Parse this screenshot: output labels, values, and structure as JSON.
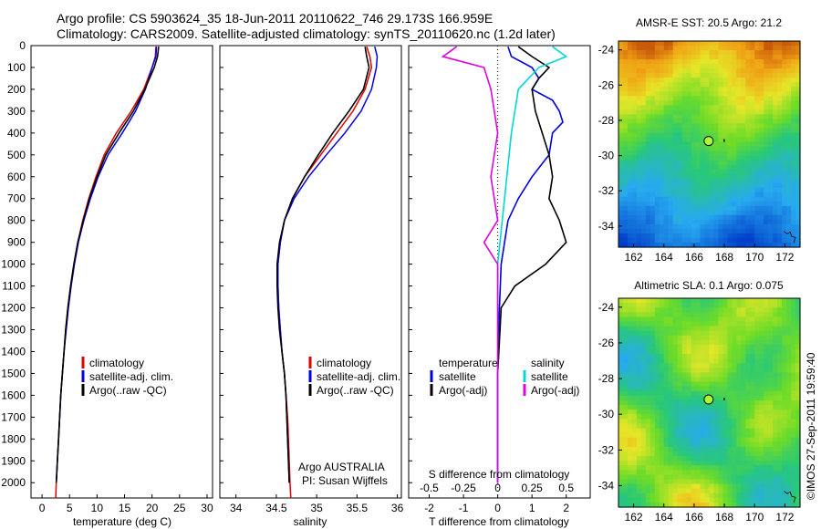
{
  "title": {
    "line1": "Argo profile: CS 5903624_35 18-Jun-2011 20110622_746 29.173S 166.959E",
    "line2": "Climatology: CARS2009. Satellite-adjusted climatology: synTS_20110620.nc (1.2d later)"
  },
  "colors": {
    "climatology": "#e00000",
    "satellite": "#0000e0",
    "argo": "#000000",
    "sat_salinity": "#00d8d8",
    "argo_salinity": "#e000e0"
  },
  "depth_axis": {
    "ticks": [
      "0",
      "100",
      "200",
      "300",
      "400",
      "500",
      "600",
      "700",
      "800",
      "900",
      "1000",
      "1100",
      "1200",
      "1300",
      "1400",
      "1500",
      "1600",
      "1700",
      "1800",
      "1900",
      "2000"
    ],
    "range": [
      0,
      2070
    ]
  },
  "chart_data": [
    {
      "type": "line",
      "panel": "temperature",
      "xlabel": "temperature (deg C)",
      "xticks": [
        "0",
        "5",
        "10",
        "15",
        "20",
        "25",
        "30"
      ],
      "xlim": [
        -2,
        31
      ],
      "legend": [
        "climatology",
        "satellite-adj. clim.",
        "Argo(..raw -QC)"
      ],
      "series": [
        {
          "name": "climatology",
          "points": [
            [
              20.7,
              5
            ],
            [
              20.6,
              50
            ],
            [
              20.0,
              100
            ],
            [
              18.5,
              200
            ],
            [
              16.2,
              300
            ],
            [
              13.5,
              400
            ],
            [
              11.3,
              500
            ],
            [
              9.8,
              600
            ],
            [
              8.5,
              700
            ],
            [
              7.4,
              800
            ],
            [
              6.5,
              900
            ],
            [
              5.8,
              1000
            ],
            [
              5.2,
              1100
            ],
            [
              4.7,
              1200
            ],
            [
              4.3,
              1300
            ],
            [
              4.0,
              1400
            ],
            [
              3.7,
              1500
            ],
            [
              3.4,
              1600
            ],
            [
              3.2,
              1700
            ],
            [
              3.0,
              1800
            ],
            [
              2.8,
              1900
            ],
            [
              2.6,
              2000
            ],
            [
              2.5,
              2070
            ]
          ]
        },
        {
          "name": "satellite-adj. clim.",
          "points": [
            [
              20.8,
              5
            ],
            [
              20.7,
              50
            ],
            [
              20.0,
              100
            ],
            [
              18.8,
              200
            ],
            [
              17.0,
              300
            ],
            [
              14.6,
              400
            ],
            [
              12.0,
              500
            ],
            [
              10.2,
              600
            ],
            [
              8.8,
              700
            ],
            [
              7.6,
              800
            ],
            [
              6.6,
              900
            ],
            [
              5.9,
              1000
            ],
            [
              5.3,
              1100
            ],
            [
              4.8,
              1200
            ],
            [
              4.4,
              1300
            ],
            [
              4.0,
              1400
            ],
            [
              3.7,
              1500
            ],
            [
              3.4,
              1600
            ],
            [
              3.2,
              1700
            ],
            [
              3.0,
              1800
            ],
            [
              2.8,
              1900
            ],
            [
              2.6,
              2000
            ]
          ]
        },
        {
          "name": "Argo(..raw -QC)",
          "points": [
            [
              21.2,
              5
            ],
            [
              21.0,
              50
            ],
            [
              20.4,
              100
            ],
            [
              18.7,
              200
            ],
            [
              16.6,
              300
            ],
            [
              14.0,
              400
            ],
            [
              11.6,
              500
            ],
            [
              10.0,
              600
            ],
            [
              8.6,
              700
            ],
            [
              7.5,
              800
            ],
            [
              6.5,
              900
            ],
            [
              5.8,
              1000
            ],
            [
              5.2,
              1100
            ],
            [
              4.7,
              1200
            ],
            [
              4.3,
              1300
            ],
            [
              4.0,
              1400
            ],
            [
              3.7,
              1500
            ],
            [
              3.4,
              1600
            ],
            [
              3.2,
              1700
            ],
            [
              3.0,
              1800
            ],
            [
              2.8,
              1900
            ],
            [
              2.6,
              2000
            ]
          ]
        }
      ]
    },
    {
      "type": "line",
      "panel": "salinity",
      "xlabel": "salinity",
      "xticks": [
        "34",
        "34.5",
        "35",
        "35.5",
        "36"
      ],
      "xlim": [
        33.8,
        36.05
      ],
      "legend": [
        "climatology",
        "satellite-adj. clim.",
        "Argo(..raw -QC)"
      ],
      "annotation": [
        "Argo AUSTRALIA",
        "PI: Susan Wijffels"
      ],
      "series": [
        {
          "name": "climatology",
          "points": [
            [
              35.62,
              5
            ],
            [
              35.66,
              50
            ],
            [
              35.68,
              100
            ],
            [
              35.6,
              200
            ],
            [
              35.45,
              300
            ],
            [
              35.25,
              400
            ],
            [
              35.05,
              500
            ],
            [
              34.85,
              600
            ],
            [
              34.7,
              700
            ],
            [
              34.6,
              800
            ],
            [
              34.55,
              900
            ],
            [
              34.52,
              1000
            ],
            [
              34.52,
              1100
            ],
            [
              34.53,
              1200
            ],
            [
              34.55,
              1300
            ],
            [
              34.57,
              1400
            ],
            [
              34.6,
              1500
            ],
            [
              34.62,
              1600
            ],
            [
              34.64,
              1700
            ],
            [
              34.65,
              1800
            ],
            [
              34.66,
              1900
            ],
            [
              34.67,
              2000
            ],
            [
              34.68,
              2070
            ]
          ]
        },
        {
          "name": "satellite-adj. clim.",
          "points": [
            [
              35.72,
              5
            ],
            [
              35.75,
              50
            ],
            [
              35.74,
              100
            ],
            [
              35.68,
              200
            ],
            [
              35.55,
              300
            ],
            [
              35.35,
              400
            ],
            [
              35.12,
              500
            ],
            [
              34.9,
              600
            ],
            [
              34.72,
              700
            ],
            [
              34.6,
              800
            ],
            [
              34.55,
              900
            ],
            [
              34.52,
              1000
            ],
            [
              34.52,
              1100
            ],
            [
              34.53,
              1200
            ],
            [
              34.55,
              1300
            ],
            [
              34.57,
              1400
            ],
            [
              34.6,
              1500
            ],
            [
              34.62,
              1600
            ],
            [
              34.63,
              1700
            ],
            [
              34.64,
              1800
            ],
            [
              34.65,
              1900
            ],
            [
              34.66,
              2000
            ]
          ]
        },
        {
          "name": "Argo(..raw -QC)",
          "points": [
            [
              35.6,
              5
            ],
            [
              35.62,
              50
            ],
            [
              35.65,
              100
            ],
            [
              35.58,
              200
            ],
            [
              35.4,
              300
            ],
            [
              35.2,
              400
            ],
            [
              35.02,
              500
            ],
            [
              34.85,
              600
            ],
            [
              34.7,
              700
            ],
            [
              34.6,
              800
            ],
            [
              34.54,
              900
            ],
            [
              34.51,
              1000
            ],
            [
              34.51,
              1100
            ],
            [
              34.52,
              1200
            ],
            [
              34.54,
              1300
            ],
            [
              34.57,
              1400
            ],
            [
              34.6,
              1500
            ],
            [
              34.62,
              1600
            ],
            [
              34.63,
              1700
            ],
            [
              34.64,
              1800
            ],
            [
              34.65,
              1900
            ],
            [
              34.66,
              2000
            ]
          ]
        }
      ]
    },
    {
      "type": "line",
      "panel": "difference",
      "xlabel": "T difference from climatology",
      "xlabel_top": "S difference from climatology",
      "xticks_bottom": [
        "-2",
        "-1",
        "0",
        "1",
        "2"
      ],
      "xticks_top": [
        "-0.5",
        "-0.25",
        "0",
        "0.25",
        "0.5"
      ],
      "xlim": [
        -2.6,
        2.7
      ],
      "legend_temperature": {
        "header": "temperature",
        "entries": [
          "satellite",
          "Argo(-adj)"
        ]
      },
      "legend_salinity": {
        "header": "salinity",
        "entries": [
          "satellite",
          "Argo(-adj)"
        ]
      },
      "series": [
        {
          "name": "temperature satellite",
          "points": [
            [
              0.3,
              5
            ],
            [
              0.4,
              50
            ],
            [
              1.0,
              100
            ],
            [
              1.2,
              150
            ],
            [
              1.0,
              200
            ],
            [
              1.6,
              250
            ],
            [
              1.8,
              300
            ],
            [
              1.9,
              350
            ],
            [
              1.6,
              400
            ],
            [
              1.5,
              500
            ],
            [
              1.0,
              600
            ],
            [
              0.6,
              700
            ],
            [
              0.3,
              800
            ],
            [
              0.2,
              900
            ],
            [
              0.1,
              1000
            ],
            [
              0.05,
              1200
            ],
            [
              0.0,
              1500
            ],
            [
              0.0,
              2000
            ]
          ]
        },
        {
          "name": "temperature Argo(-adj)",
          "points": [
            [
              0.6,
              5
            ],
            [
              1.0,
              50
            ],
            [
              1.5,
              100
            ],
            [
              1.2,
              150
            ],
            [
              1.0,
              200
            ],
            [
              1.1,
              300
            ],
            [
              1.3,
              400
            ],
            [
              1.5,
              500
            ],
            [
              1.6,
              600
            ],
            [
              1.5,
              700
            ],
            [
              1.8,
              800
            ],
            [
              2.0,
              900
            ],
            [
              1.4,
              1000
            ],
            [
              0.5,
              1100
            ],
            [
              0.1,
              1200
            ],
            [
              0.0,
              1500
            ],
            [
              0.0,
              2000
            ]
          ]
        },
        {
          "name": "salinity satellite",
          "points": [
            [
              0.4,
              5
            ],
            [
              0.5,
              50
            ],
            [
              0.3,
              100
            ],
            [
              0.15,
              200
            ],
            [
              0.1,
              400
            ],
            [
              0.05,
              700
            ],
            [
              0.0,
              1000
            ],
            [
              0.0,
              2000
            ]
          ]
        },
        {
          "name": "salinity Argo(-adj)",
          "points": [
            [
              -0.3,
              5
            ],
            [
              -0.4,
              50
            ],
            [
              -0.1,
              100
            ],
            [
              -0.05,
              200
            ],
            [
              0.0,
              400
            ],
            [
              -0.05,
              600
            ],
            [
              0.0,
              800
            ],
            [
              -0.1,
              900
            ],
            [
              0.0,
              1000
            ],
            [
              0.0,
              2000
            ]
          ]
        }
      ]
    },
    {
      "type": "heatmap",
      "panel": "sst-map",
      "title": "AMSR-E SST: 20.5 Argo: 21.2",
      "xticks": [
        "162",
        "164",
        "166",
        "168",
        "170",
        "172"
      ],
      "yticks": [
        "-24",
        "-26",
        "-28",
        "-30",
        "-32",
        "-34"
      ],
      "xlim": [
        161,
        173
      ],
      "ylim": [
        -35.2,
        -23.5
      ],
      "marker": {
        "lon": 166.959,
        "lat": -29.173
      }
    },
    {
      "type": "heatmap",
      "panel": "sla-map",
      "title": "Altimetric SLA: 0.1 Argo: 0.075",
      "xticks": [
        "162",
        "164",
        "166",
        "168",
        "170",
        "172"
      ],
      "yticks": [
        "-24",
        "-26",
        "-28",
        "-30",
        "-32",
        "-34"
      ],
      "xlim": [
        161,
        173
      ],
      "ylim": [
        -35.2,
        -23.5
      ],
      "marker": {
        "lon": 166.959,
        "lat": -29.173
      }
    }
  ],
  "footer": "©IMOS 27-Sep-2011 19:59:40"
}
